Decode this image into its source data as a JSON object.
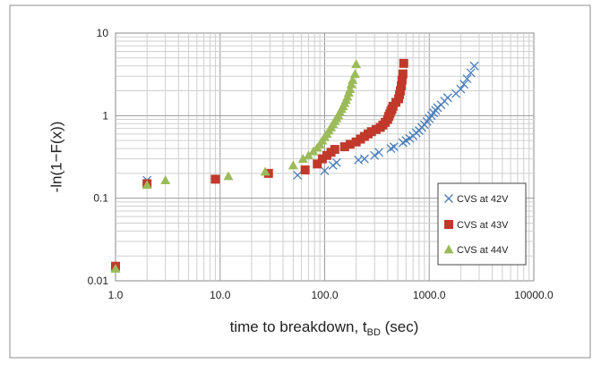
{
  "chart_data": {
    "type": "scatter",
    "x_scale": "log",
    "y_scale": "log",
    "xlim": [
      1,
      10000
    ],
    "ylim": [
      0.01,
      10
    ],
    "grid": true,
    "legend_position": "right",
    "xlabel": "time to breakdown, t",
    "xlabel_subscript": "BD",
    "xlabel_suffix": " (sec)",
    "ylabel": "-ln(1−F(x))",
    "x_ticks": [
      "1.0",
      "10.0",
      "100.0",
      "1000.0",
      "10000.0"
    ],
    "y_ticks": [
      "0.01",
      "0.1",
      "1",
      "10"
    ],
    "series": [
      {
        "name": "CVS at 42V",
        "marker": "x",
        "color": "#4a7ebb",
        "points": [
          [
            1.0,
            0.015
          ],
          [
            2.0,
            0.165
          ],
          [
            55,
            0.19
          ],
          [
            100,
            0.215
          ],
          [
            120,
            0.25
          ],
          [
            130,
            0.27
          ],
          [
            210,
            0.29
          ],
          [
            240,
            0.3
          ],
          [
            300,
            0.33
          ],
          [
            330,
            0.36
          ],
          [
            430,
            0.4
          ],
          [
            460,
            0.42
          ],
          [
            560,
            0.47
          ],
          [
            600,
            0.5
          ],
          [
            650,
            0.53
          ],
          [
            700,
            0.57
          ],
          [
            750,
            0.62
          ],
          [
            800,
            0.66
          ],
          [
            850,
            0.72
          ],
          [
            900,
            0.78
          ],
          [
            950,
            0.85
          ],
          [
            1000,
            0.92
          ],
          [
            1050,
            1.0
          ],
          [
            1100,
            1.08
          ],
          [
            1150,
            1.16
          ],
          [
            1200,
            1.25
          ],
          [
            1300,
            1.35
          ],
          [
            1400,
            1.5
          ],
          [
            1500,
            1.65
          ],
          [
            1800,
            1.85
          ],
          [
            2000,
            2.1
          ],
          [
            2150,
            2.4
          ],
          [
            2300,
            2.8
          ],
          [
            2500,
            3.3
          ],
          [
            2700,
            4.0
          ]
        ]
      },
      {
        "name": "CVS at 43V",
        "marker": "square",
        "color": "#c0392b",
        "points": [
          [
            1.0,
            0.015
          ],
          [
            2.0,
            0.15
          ],
          [
            9.0,
            0.17
          ],
          [
            29,
            0.2
          ],
          [
            65,
            0.22
          ],
          [
            85,
            0.26
          ],
          [
            95,
            0.3
          ],
          [
            105,
            0.33
          ],
          [
            115,
            0.36
          ],
          [
            125,
            0.39
          ],
          [
            155,
            0.42
          ],
          [
            175,
            0.45
          ],
          [
            200,
            0.48
          ],
          [
            220,
            0.52
          ],
          [
            240,
            0.56
          ],
          [
            260,
            0.6
          ],
          [
            280,
            0.64
          ],
          [
            310,
            0.68
          ],
          [
            340,
            0.72
          ],
          [
            360,
            0.77
          ],
          [
            380,
            0.83
          ],
          [
            400,
            0.9
          ],
          [
            410,
            0.98
          ],
          [
            420,
            1.05
          ],
          [
            430,
            1.13
          ],
          [
            440,
            1.2
          ],
          [
            450,
            1.3
          ],
          [
            480,
            1.45
          ],
          [
            510,
            1.6
          ],
          [
            520,
            1.8
          ],
          [
            530,
            2.0
          ],
          [
            540,
            2.3
          ],
          [
            550,
            2.7
          ],
          [
            560,
            3.2
          ],
          [
            570,
            4.3
          ]
        ]
      },
      {
        "name": "CVS at 44V",
        "marker": "triangle",
        "color": "#9bbb59",
        "points": [
          [
            1.0,
            0.014
          ],
          [
            2.0,
            0.145
          ],
          [
            3.0,
            0.165
          ],
          [
            12,
            0.185
          ],
          [
            27,
            0.21
          ],
          [
            50,
            0.25
          ],
          [
            62,
            0.3
          ],
          [
            70,
            0.33
          ],
          [
            78,
            0.37
          ],
          [
            85,
            0.41
          ],
          [
            90,
            0.45
          ],
          [
            95,
            0.5
          ],
          [
            100,
            0.55
          ],
          [
            105,
            0.6
          ],
          [
            110,
            0.66
          ],
          [
            115,
            0.72
          ],
          [
            120,
            0.79
          ],
          [
            125,
            0.86
          ],
          [
            130,
            0.93
          ],
          [
            135,
            1.01
          ],
          [
            140,
            1.1
          ],
          [
            145,
            1.2
          ],
          [
            150,
            1.3
          ],
          [
            155,
            1.42
          ],
          [
            160,
            1.55
          ],
          [
            165,
            1.7
          ],
          [
            170,
            1.9
          ],
          [
            175,
            2.1
          ],
          [
            180,
            2.4
          ],
          [
            185,
            2.7
          ],
          [
            195,
            3.2
          ],
          [
            200,
            4.2
          ]
        ]
      }
    ]
  }
}
